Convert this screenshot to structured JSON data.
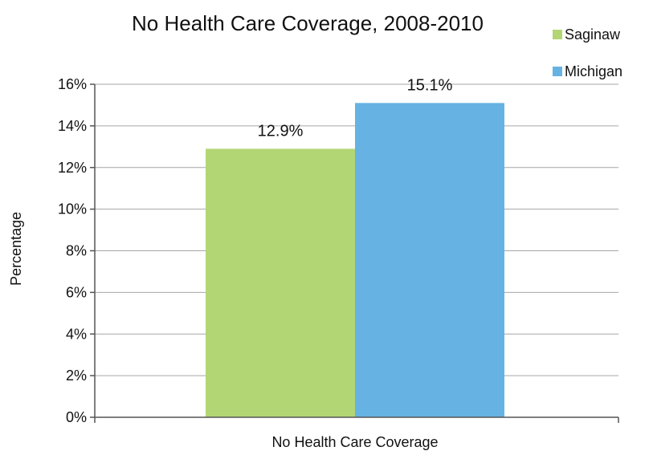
{
  "chart_data": {
    "type": "bar",
    "title": "No Health Care Coverage, 2008-2010",
    "xlabel": "",
    "ylabel": "Percentage",
    "categories": [
      "No Health Care Coverage"
    ],
    "series": [
      {
        "name": "Saginaw",
        "values": [
          12.9
        ],
        "data_labels": [
          "12.9%"
        ],
        "color": "#b3d675"
      },
      {
        "name": "Michigan",
        "values": [
          15.1
        ],
        "data_labels": [
          "15.1%"
        ],
        "color": "#66b3e3"
      }
    ],
    "ylim": [
      0,
      16
    ],
    "yticks": [
      "0%",
      "2%",
      "4%",
      "6%",
      "8%",
      "10%",
      "12%",
      "14%",
      "16%"
    ],
    "grid": true,
    "legend_position": "top-right"
  }
}
